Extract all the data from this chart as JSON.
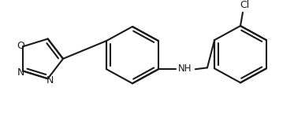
{
  "bg_color": "#ffffff",
  "line_color": "#1a1a1a",
  "text_color": "#1a1a1a",
  "lw": 1.5,
  "fs": 9.0,
  "figsize": [
    3.73,
    1.53
  ],
  "dpi": 100,
  "xlim": [
    0,
    373
  ],
  "ylim": [
    0,
    153
  ]
}
